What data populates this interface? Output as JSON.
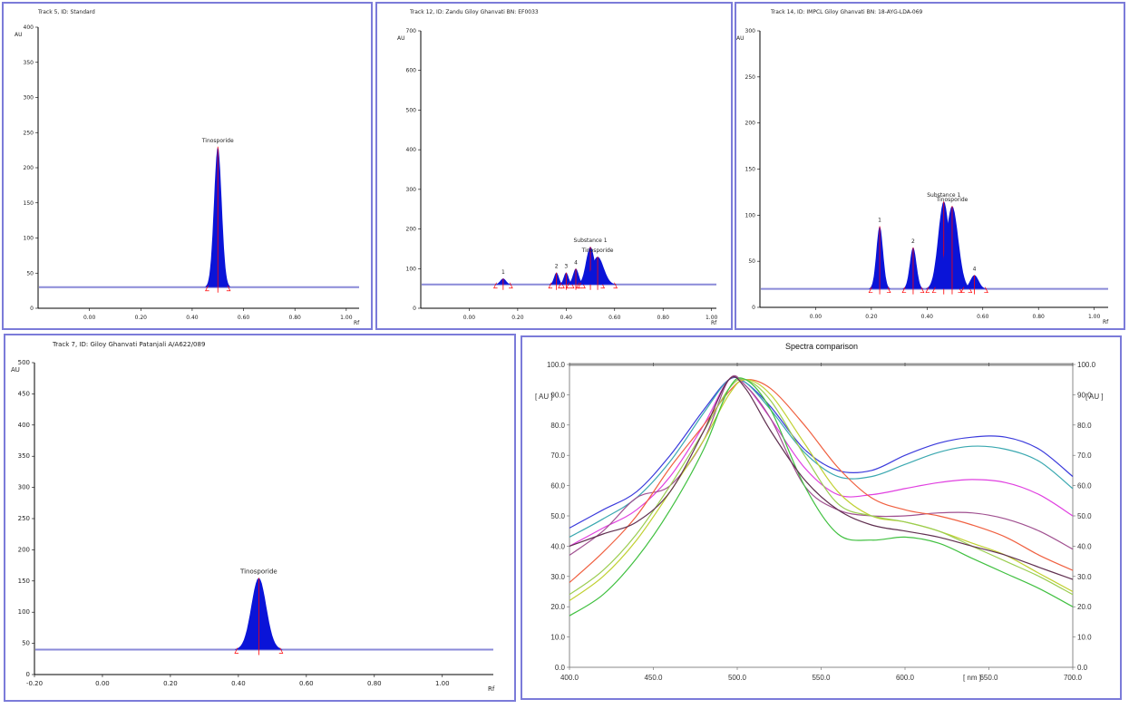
{
  "colors": {
    "border": "#7b7bd9",
    "peak_fill": "#0a14d8",
    "baseline": "#8a8ad8",
    "peak_marker": "#ff0000"
  },
  "panels": [
    {
      "title": "Track 5, ID: Standard",
      "yunit": "AU",
      "xunit": "Rf",
      "chart_data": {
        "type": "area",
        "xlim": [
          -0.2,
          1.05
        ],
        "ylim": [
          0,
          400
        ],
        "xticks": [
          "0.00",
          "0.20",
          "0.40",
          "0.60",
          "0.80",
          "1.00"
        ],
        "yticks": [
          "0",
          "50",
          "100",
          "150",
          "200",
          "250",
          "300",
          "350",
          "400"
        ],
        "baseline": 30,
        "peaks": [
          {
            "label": "Tinosporide",
            "rf": 0.5,
            "height": 230,
            "width": 0.015
          }
        ]
      }
    },
    {
      "title": "Track 12, ID: Zandu Giloy Ghanvati BN: EF0033",
      "yunit": "AU",
      "xunit": "Rf",
      "chart_data": {
        "type": "area",
        "xlim": [
          -0.2,
          1.02
        ],
        "ylim": [
          0,
          700
        ],
        "xticks": [
          "0.00",
          "0.20",
          "0.40",
          "0.60",
          "0.80",
          "1.00"
        ],
        "yticks": [
          "0",
          "100",
          "200",
          "300",
          "400",
          "500",
          "600",
          "700"
        ],
        "baseline": 60,
        "peaks": [
          {
            "label": "1",
            "rf": 0.14,
            "height": 75,
            "width": 0.012
          },
          {
            "label": "2",
            "rf": 0.36,
            "height": 90,
            "width": 0.01
          },
          {
            "label": "3",
            "rf": 0.4,
            "height": 90,
            "width": 0.01
          },
          {
            "label": "4",
            "rf": 0.44,
            "height": 100,
            "width": 0.012
          },
          {
            "label": "Substance 1",
            "rf": 0.5,
            "height": 155,
            "width": 0.018
          },
          {
            "label": "Tinosporide",
            "rf": 0.53,
            "height": 130,
            "width": 0.025
          }
        ]
      }
    },
    {
      "title": "Track 14, ID: IMPCL Giloy Ghanvati BN: 18-AYG-LDA-069",
      "yunit": "AU",
      "xunit": "Rf",
      "chart_data": {
        "type": "area",
        "xlim": [
          -0.2,
          1.05
        ],
        "ylim": [
          0,
          300
        ],
        "xticks": [
          "0.00",
          "0.20",
          "0.40",
          "0.60",
          "0.80",
          "1.00"
        ],
        "yticks": [
          "0",
          "50",
          "100",
          "150",
          "200",
          "250",
          "300"
        ],
        "baseline": 20,
        "peaks": [
          {
            "label": "1",
            "rf": 0.23,
            "height": 88,
            "width": 0.012
          },
          {
            "label": "2",
            "rf": 0.35,
            "height": 65,
            "width": 0.012
          },
          {
            "label": "Substance 1",
            "rf": 0.46,
            "height": 115,
            "width": 0.02
          },
          {
            "label": "Tinosporide",
            "rf": 0.49,
            "height": 110,
            "width": 0.022
          },
          {
            "label": "4",
            "rf": 0.57,
            "height": 35,
            "width": 0.015
          }
        ]
      }
    },
    {
      "title": "Track 7, ID: Giloy Ghanvati Patanjali A/A622/089",
      "yunit": "AU",
      "xunit": "Rf",
      "chart_data": {
        "type": "area",
        "xlim": [
          -0.2,
          1.15
        ],
        "ylim": [
          0,
          500
        ],
        "xticks": [
          "-0.20",
          "0.00",
          "0.20",
          "0.40",
          "0.60",
          "0.80",
          "1.00"
        ],
        "yticks": [
          "0",
          "50",
          "100",
          "150",
          "200",
          "250",
          "300",
          "350",
          "400",
          "450",
          "500"
        ],
        "baseline": 40,
        "peaks": [
          {
            "label": "Tinosporide",
            "rf": 0.46,
            "height": 155,
            "width": 0.022
          }
        ]
      }
    }
  ],
  "spectra": {
    "title": "Spectra comparison",
    "ylabel_left": "[ AU ]",
    "ylabel_right": "[ AU ]",
    "xlabel": "[ nm ]",
    "chart_data": {
      "type": "line",
      "xlim": [
        400,
        700
      ],
      "ylim": [
        0,
        100
      ],
      "xticks": [
        "400.0",
        "450.0",
        "500.0",
        "550.0",
        "600.0",
        "650.0",
        "700.0"
      ],
      "yticks": [
        "0.0",
        "10.0",
        "20.0",
        "30.0",
        "40.0",
        "50.0",
        "60.0",
        "70.0",
        "80.0",
        "90.0",
        "100.0"
      ],
      "x": [
        400,
        420,
        440,
        460,
        480,
        495,
        505,
        520,
        540,
        560,
        580,
        600,
        620,
        640,
        660,
        680,
        700
      ],
      "series": [
        {
          "color": "#3b3bdc",
          "values": [
            46,
            52,
            58,
            70,
            85,
            95,
            94,
            86,
            72,
            65,
            65,
            70,
            74,
            76,
            76,
            72,
            63
          ]
        },
        {
          "color": "#3aa8b0",
          "values": [
            43,
            49,
            56,
            68,
            84,
            95,
            94,
            85,
            71,
            63,
            63,
            67,
            71,
            73,
            72,
            68,
            59
          ]
        },
        {
          "color": "#e040e0",
          "values": [
            40,
            46,
            52,
            63,
            80,
            95,
            93,
            82,
            66,
            57,
            57,
            59,
            61,
            62,
            61,
            57,
            50
          ]
        },
        {
          "color": "#a05090",
          "values": [
            37,
            45,
            56,
            60,
            75,
            95,
            93,
            82,
            60,
            52,
            50,
            50,
            51,
            51,
            49,
            45,
            39
          ]
        },
        {
          "color": "#f06040",
          "values": [
            28,
            38,
            50,
            66,
            80,
            91,
            95,
            92,
            80,
            66,
            56,
            52,
            50,
            47,
            43,
            37,
            32
          ]
        },
        {
          "color": "#c0d030",
          "values": [
            22,
            30,
            42,
            58,
            75,
            90,
            95,
            90,
            74,
            58,
            50,
            48,
            45,
            41,
            37,
            31,
            25
          ]
        },
        {
          "color": "#9acd50",
          "values": [
            24,
            32,
            44,
            60,
            78,
            92,
            95,
            88,
            70,
            54,
            50,
            48,
            45,
            40,
            35,
            30,
            24
          ]
        },
        {
          "color": "#40c040",
          "values": [
            17,
            24,
            36,
            52,
            72,
            92,
            95,
            85,
            60,
            44,
            42,
            43,
            41,
            36,
            31,
            26,
            20
          ]
        },
        {
          "color": "#603050",
          "values": [
            40,
            44,
            48,
            58,
            78,
            95,
            92,
            78,
            62,
            52,
            47,
            45,
            43,
            40,
            37,
            33,
            29
          ]
        }
      ]
    }
  }
}
